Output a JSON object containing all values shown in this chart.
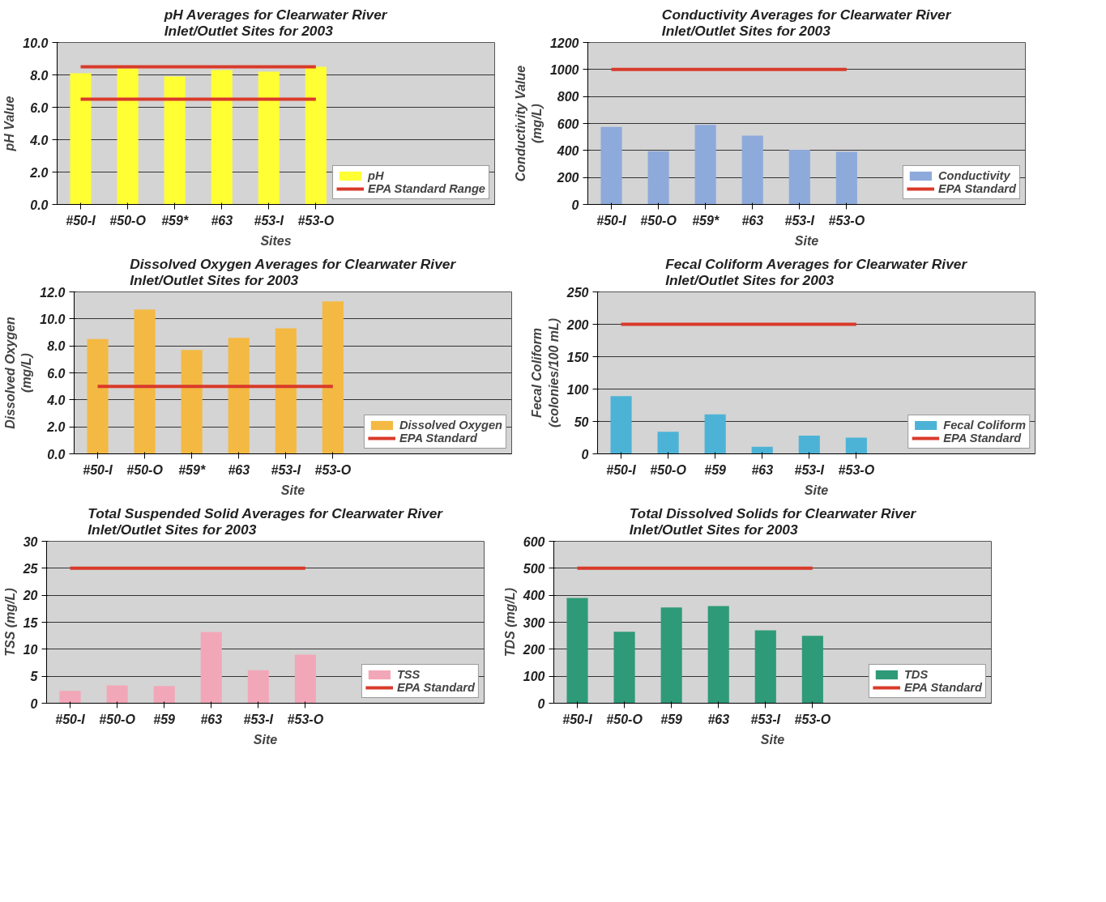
{
  "chart_data": [
    {
      "type": "bar",
      "title": "pH Averages for Clearwater River\nInlet/Outlet Sites for 2003",
      "xlabel": "Sites",
      "ylabel": "pH Value",
      "categories": [
        "#50-I",
        "#50-O",
        "#59*",
        "#63",
        "#53-I",
        "#53-O"
      ],
      "series": [
        {
          "name": "pH",
          "color": "#ffff33",
          "values": [
            8.1,
            8.4,
            7.9,
            8.3,
            8.2,
            8.5
          ]
        },
        {
          "name": "EPA Standard Range",
          "type": "line",
          "color": "#d93a2a",
          "values": [
            8.5,
            8.5,
            8.5,
            8.5,
            8.5,
            8.5
          ]
        },
        {
          "type": "line",
          "color": "#d93a2a",
          "values": [
            6.5,
            6.5,
            6.5,
            6.5,
            6.5,
            6.5
          ]
        }
      ],
      "ylim": [
        0,
        10
      ],
      "yticks": [
        {
          "value": 0,
          "label": "0.0"
        },
        {
          "value": 2,
          "label": "2.0"
        },
        {
          "value": 4,
          "label": "4.0"
        },
        {
          "value": 6,
          "label": "6.0"
        },
        {
          "value": 8,
          "label": "8.0"
        },
        {
          "value": 10,
          "label": "10.0"
        }
      ],
      "grid": "y",
      "legend": "bottom right"
    },
    {
      "type": "bar",
      "title": "Conductivity Averages for Clearwater River\nInlet/Outlet Sites for 2003",
      "xlabel": "Site",
      "ylabel": "Conductivity Value\n(mg/L)",
      "categories": [
        "#50-I",
        "#50-O",
        "#59*",
        "#63",
        "#53-I",
        "#53-O"
      ],
      "series": [
        {
          "name": "Conductivity",
          "color": "#8eaadb",
          "values": [
            575,
            395,
            590,
            510,
            405,
            390
          ]
        },
        {
          "name": "EPA Standard",
          "type": "line",
          "color": "#d93a2a",
          "values": [
            1000,
            1000,
            1000,
            1000,
            1000,
            1000
          ]
        }
      ],
      "ylim": [
        0,
        1200
      ],
      "yticks": [
        0,
        200,
        400,
        600,
        800,
        1000,
        1200
      ],
      "grid": "y",
      "legend": "bottom right"
    },
    {
      "type": "bar",
      "title": "Dissolved Oxygen Averages for Clearwater River\nInlet/Outlet Sites for 2003",
      "xlabel": "Site",
      "ylabel": "Dissolved Oxygen\n(mg/L)",
      "categories": [
        "#50-I",
        "#50-O",
        "#59*",
        "#63",
        "#53-I",
        "#53-O"
      ],
      "series": [
        {
          "name": "Dissolved Oxygen",
          "color": "#f4b942",
          "values": [
            8.5,
            10.7,
            7.7,
            8.6,
            9.3,
            11.3
          ]
        },
        {
          "name": "EPA Standard",
          "type": "line",
          "color": "#d93a2a",
          "values": [
            5,
            5,
            5,
            5,
            5,
            5
          ]
        }
      ],
      "ylim": [
        0,
        12
      ],
      "yticks": [
        {
          "value": 0,
          "label": "0.0"
        },
        {
          "value": 2,
          "label": "2.0"
        },
        {
          "value": 4,
          "label": "4.0"
        },
        {
          "value": 6,
          "label": "6.0"
        },
        {
          "value": 8,
          "label": "8.0"
        },
        {
          "value": 10,
          "label": "10.0"
        },
        {
          "value": 12,
          "label": "12.0"
        }
      ],
      "grid": "y",
      "legend": "bottom right"
    },
    {
      "type": "bar",
      "title": "Fecal Coliform Averages for Clearwater River\nInlet/Outlet Sites for 2003",
      "xlabel": "Site",
      "ylabel": "Fecal Coliform\n(colonies/100 mL)",
      "categories": [
        "#50-I",
        "#50-O",
        "#59",
        "#63",
        "#53-I",
        "#53-O"
      ],
      "series": [
        {
          "name": "Fecal Coliform",
          "color": "#4db3d6",
          "values": [
            89,
            34,
            61,
            11,
            28,
            25
          ]
        },
        {
          "name": "EPA Standard",
          "type": "line",
          "color": "#d93a2a",
          "values": [
            200,
            200,
            200,
            200,
            200,
            200
          ]
        }
      ],
      "ylim": [
        0,
        250
      ],
      "yticks": [
        0,
        50,
        100,
        150,
        200,
        250
      ],
      "grid": "y",
      "legend": "bottom right"
    },
    {
      "type": "bar",
      "title": "Total Suspended Solid Averages for Clearwater River\nInlet/Outlet Sites for 2003",
      "xlabel": "Site",
      "ylabel": "TSS (mg/L)",
      "categories": [
        "#50-I",
        "#50-O",
        "#59",
        "#63",
        "#53-I",
        "#53-O"
      ],
      "series": [
        {
          "name": "TSS",
          "color": "#f2a7b8",
          "values": [
            2.3,
            3.3,
            3.2,
            13.2,
            6.1,
            9.0
          ]
        },
        {
          "name": "EPA Standard",
          "type": "line",
          "color": "#d93a2a",
          "values": [
            25,
            25,
            25,
            25,
            25,
            25
          ]
        }
      ],
      "ylim": [
        0,
        30
      ],
      "yticks": [
        0,
        5,
        10,
        15,
        20,
        25,
        30
      ],
      "grid": "y",
      "legend": "bottom right"
    },
    {
      "type": "bar",
      "title": "Total Dissolved Solids for Clearwater River\nInlet/Outlet Sites for 2003",
      "xlabel": "Site",
      "ylabel": "TDS (mg/L)",
      "categories": [
        "#50-I",
        "#50-O",
        "#59",
        "#63",
        "#53-I",
        "#53-O"
      ],
      "series": [
        {
          "name": "TDS",
          "color": "#2e9a78",
          "values": [
            390,
            265,
            355,
            360,
            270,
            250
          ]
        },
        {
          "name": "EPA Standard",
          "type": "line",
          "color": "#d93a2a",
          "values": [
            500,
            500,
            500,
            500,
            500,
            500
          ]
        }
      ],
      "ylim": [
        0,
        600
      ],
      "yticks": [
        0,
        100,
        200,
        300,
        400,
        500,
        600
      ],
      "grid": "y",
      "legend": "bottom right"
    }
  ]
}
